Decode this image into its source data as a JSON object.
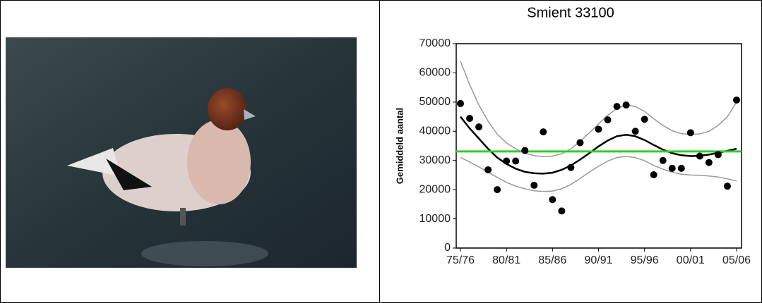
{
  "chart_data": {
    "type": "scatter",
    "title": "Smient 33100",
    "y_label": "Gemiddeld aantal",
    "categories": [
      "75/76",
      null,
      null,
      null,
      null,
      "80/81",
      null,
      null,
      null,
      null,
      "85/86",
      null,
      null,
      null,
      null,
      "90/91",
      null,
      null,
      null,
      null,
      "95/96",
      null,
      null,
      null,
      null,
      "00/01",
      null,
      null,
      null,
      null,
      "05/06"
    ],
    "ylim": [
      0,
      70000
    ],
    "yticks": [
      0,
      10000,
      20000,
      30000,
      40000,
      50000,
      60000,
      70000
    ],
    "series": [
      {
        "mark": "dot",
        "color": "#000000",
        "values": [
          49500,
          44400,
          41500,
          26800,
          20000,
          29800,
          29800,
          33400,
          21500,
          39800,
          16600,
          12700,
          27600,
          36100,
          null,
          40700,
          43900,
          48500,
          49000,
          40000,
          44100,
          25100,
          30000,
          27300,
          27300,
          39500,
          31500,
          29300,
          32000,
          21200,
          50700
        ]
      },
      {
        "mark": "line",
        "color": "#000000",
        "values": [
          45000,
          41000,
          37500,
          34000,
          31000,
          28800,
          27200,
          26100,
          25600,
          25500,
          25800,
          26800,
          28300,
          30300,
          32500,
          34800,
          36800,
          38300,
          38800,
          38300,
          37000,
          35300,
          33700,
          32500,
          31800,
          31500,
          31600,
          32000,
          32600,
          33300,
          34000
        ]
      },
      {
        "mark": "band",
        "color": "#999999",
        "values": [
          64000,
          56000,
          49000,
          43500,
          39000,
          36000,
          34000,
          32500,
          31700,
          31300,
          31500,
          32300,
          34000,
          36500,
          39500,
          42500,
          45500,
          47800,
          49000,
          48500,
          46800,
          44300,
          42000,
          40200,
          39200,
          38900,
          39100,
          40000,
          42000,
          45000,
          50000
        ]
      },
      {
        "mark": "band",
        "color": "#999999",
        "values": [
          31000,
          29500,
          27800,
          26000,
          24200,
          22500,
          21200,
          20300,
          19600,
          19400,
          19500,
          20300,
          21800,
          23800,
          26000,
          28000,
          29800,
          31000,
          31400,
          31000,
          29900,
          28300,
          27000,
          26000,
          25300,
          25000,
          24900,
          24700,
          24300,
          23700,
          23000
        ]
      }
    ],
    "mean_line": {
      "value": 33100,
      "color": "#33cc33"
    }
  }
}
